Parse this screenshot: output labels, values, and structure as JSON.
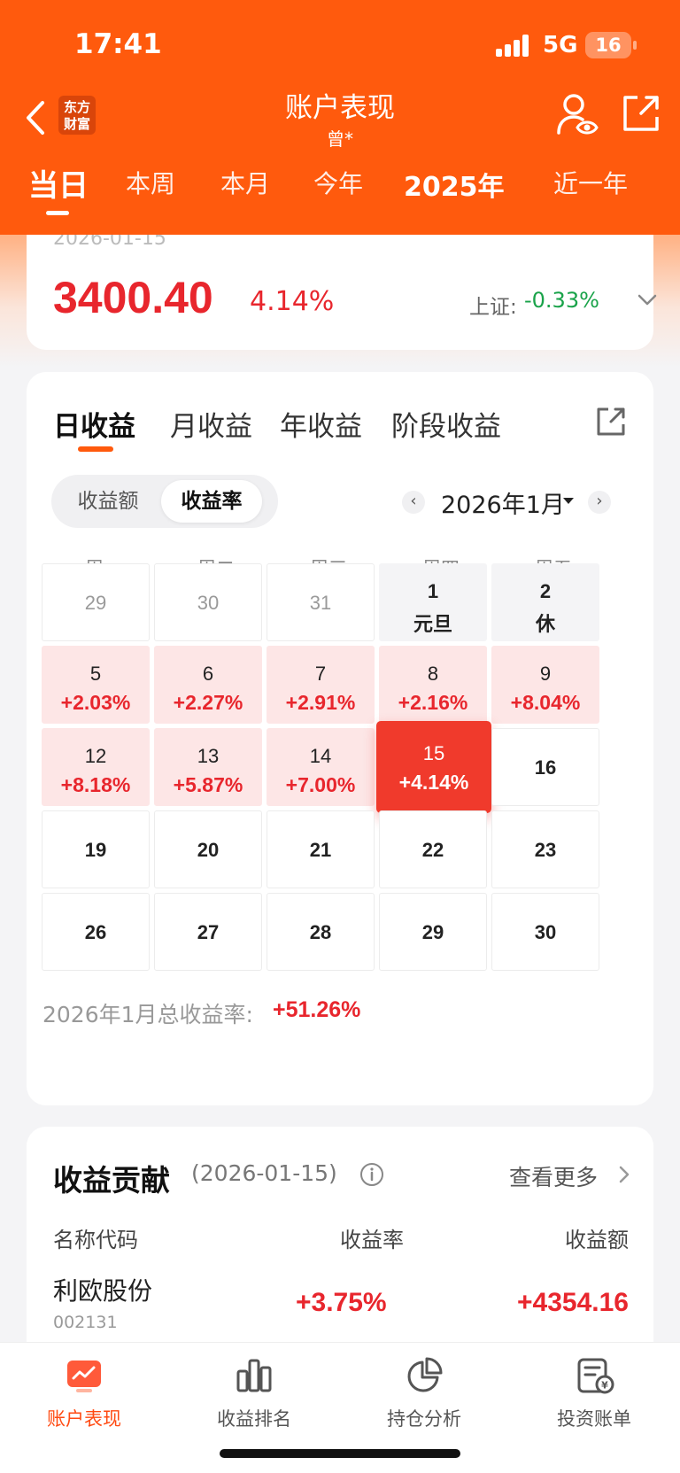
{
  "status": {
    "time": "17:41",
    "network": "5G",
    "battery": "16"
  },
  "header": {
    "logo_text": "东方财富",
    "title": "账户表现",
    "subtitle": "曾*",
    "period_tabs": [
      "当日",
      "本周",
      "本月",
      "今年",
      "2025年",
      "近一年"
    ],
    "active_period": "当日"
  },
  "summary": {
    "date": "2026-01-15",
    "value": "3400.40",
    "pct": "4.14%",
    "index_label": "上证:",
    "index_value": "-0.33%"
  },
  "returns": {
    "tabs": [
      "日收益",
      "月收益",
      "年收益",
      "阶段收益"
    ],
    "active_tab": "日收益",
    "segments": [
      "收益额",
      "收益率"
    ],
    "active_segment": "收益率",
    "month_label": "2026年1月",
    "weekdays": [
      "周一",
      "周二",
      "周三",
      "周四",
      "周五"
    ],
    "weeks": [
      [
        {
          "day": "29",
          "sub": "",
          "kind": "prev"
        },
        {
          "day": "30",
          "sub": "",
          "kind": "prev"
        },
        {
          "day": "31",
          "sub": "",
          "kind": "prev"
        },
        {
          "day": "1",
          "sub": "元旦",
          "kind": "hol"
        },
        {
          "day": "2",
          "sub": "休",
          "kind": "hol"
        }
      ],
      [
        {
          "day": "5",
          "sub": "+2.03%",
          "kind": "gain"
        },
        {
          "day": "6",
          "sub": "+2.27%",
          "kind": "gain"
        },
        {
          "day": "7",
          "sub": "+2.91%",
          "kind": "gain"
        },
        {
          "day": "8",
          "sub": "+2.16%",
          "kind": "gain"
        },
        {
          "day": "9",
          "sub": "+8.04%",
          "kind": "gain"
        }
      ],
      [
        {
          "day": "12",
          "sub": "+8.18%",
          "kind": "gain"
        },
        {
          "day": "13",
          "sub": "+5.87%",
          "kind": "gain"
        },
        {
          "day": "14",
          "sub": "+7.00%",
          "kind": "gain"
        },
        {
          "day": "15",
          "sub": "+4.14%",
          "kind": "today"
        },
        {
          "day": "16",
          "sub": "",
          "kind": "future"
        }
      ],
      [
        {
          "day": "19",
          "sub": "",
          "kind": "future"
        },
        {
          "day": "20",
          "sub": "",
          "kind": "future"
        },
        {
          "day": "21",
          "sub": "",
          "kind": "future"
        },
        {
          "day": "22",
          "sub": "",
          "kind": "future"
        },
        {
          "day": "23",
          "sub": "",
          "kind": "future"
        }
      ],
      [
        {
          "day": "26",
          "sub": "",
          "kind": "future"
        },
        {
          "day": "27",
          "sub": "",
          "kind": "future"
        },
        {
          "day": "28",
          "sub": "",
          "kind": "future"
        },
        {
          "day": "29",
          "sub": "",
          "kind": "future"
        },
        {
          "day": "30",
          "sub": "",
          "kind": "future"
        }
      ]
    ],
    "total_label": "2026年1月总收益率:",
    "total_value": "+51.26%"
  },
  "contribution": {
    "title": "收益贡献",
    "date": "(2026-01-15)",
    "more": "查看更多",
    "headers": [
      "名称代码",
      "收益率",
      "收益额"
    ],
    "rows": [
      {
        "name": "利欧股份",
        "code": "002131",
        "rate": "+3.75%",
        "amount": "+4354.16"
      }
    ]
  },
  "tabbar": {
    "items": [
      "账户表现",
      "收益排名",
      "持仓分析",
      "投资账单"
    ],
    "active": "账户表现",
    "active_color": "#ff4a12"
  },
  "colors": {
    "brand": "#ff5a0d",
    "gain": "#e8262d",
    "loss": "#1aa34a"
  }
}
